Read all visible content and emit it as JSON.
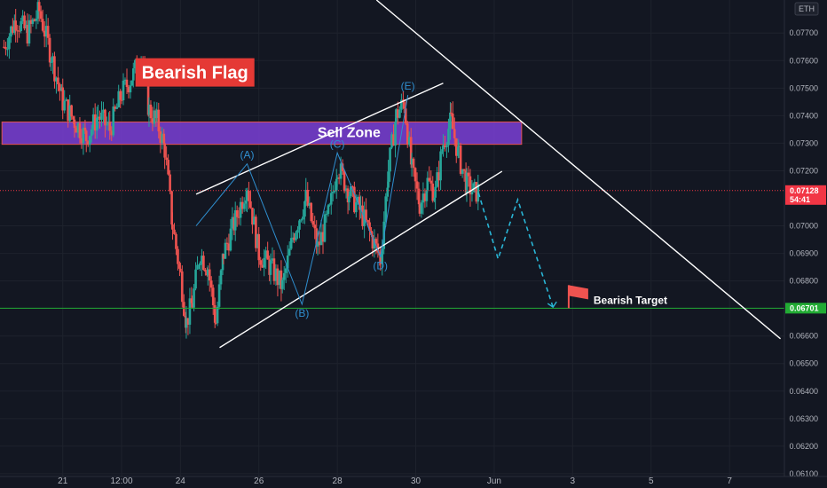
{
  "chart_data": {
    "type": "candlestick",
    "symbol_currency": "ETH",
    "title": "",
    "xlabel": "",
    "ylabel": "",
    "ylim": [
      0.0609,
      0.0782
    ],
    "y_ticks": [
      "0.07700",
      "0.07600",
      "0.07500",
      "0.07400",
      "0.07300",
      "0.07200",
      "0.07000",
      "0.06900",
      "0.06800",
      "0.06600",
      "0.06500",
      "0.06400",
      "0.06300",
      "0.06200",
      "0.06100"
    ],
    "y_tick_values": [
      0.077,
      0.076,
      0.075,
      0.074,
      0.073,
      0.072,
      0.07,
      0.069,
      0.068,
      0.066,
      0.065,
      0.064,
      0.063,
      0.062,
      0.061
    ],
    "x_ticks": [
      "21",
      "12:00",
      "24",
      "26",
      "28",
      "30",
      "Jun",
      "3",
      "5",
      "7"
    ],
    "x_tick_days": [
      21,
      22.5,
      24,
      26,
      28,
      30,
      32,
      34,
      36,
      38
    ],
    "x_range_days": [
      19.4,
      39.4
    ],
    "current_price": {
      "label": "0.07128",
      "countdown": "54:41",
      "value": 0.07128,
      "color": "#f23645"
    },
    "target_price": {
      "label": "0.06701",
      "value": 0.06701,
      "color": "#22ab34"
    },
    "colors": {
      "up": "#26a69a",
      "down": "#ef5350",
      "background": "#131722",
      "grid": "#1e222d",
      "wave": "#2f8fd0",
      "sell_zone": "#7b3fd6",
      "title_box": "#e53935"
    },
    "candle_path": [
      [
        19.5,
        0.0765
      ],
      [
        19.8,
        0.0775
      ],
      [
        20.1,
        0.077
      ],
      [
        20.4,
        0.0778
      ],
      [
        20.7,
        0.0762
      ],
      [
        21.0,
        0.0745
      ],
      [
        21.3,
        0.0738
      ],
      [
        21.6,
        0.0732
      ],
      [
        21.9,
        0.074
      ],
      [
        22.2,
        0.0735
      ],
      [
        22.5,
        0.0748
      ],
      [
        22.8,
        0.0755
      ],
      [
        23.0,
        0.0762
      ],
      [
        23.2,
        0.0742
      ],
      [
        23.4,
        0.0738
      ],
      [
        23.6,
        0.0728
      ],
      [
        23.8,
        0.07
      ],
      [
        24.0,
        0.0682
      ],
      [
        24.15,
        0.0665
      ],
      [
        24.3,
        0.0672
      ],
      [
        24.5,
        0.069
      ],
      [
        24.7,
        0.0685
      ],
      [
        24.9,
        0.0665
      ],
      [
        25.1,
        0.069
      ],
      [
        25.4,
        0.0702
      ],
      [
        25.7,
        0.0715
      ],
      [
        26.0,
        0.069
      ],
      [
        26.3,
        0.0685
      ],
      [
        26.6,
        0.0678
      ],
      [
        26.9,
        0.0698
      ],
      [
        27.2,
        0.071
      ],
      [
        27.5,
        0.0692
      ],
      [
        27.8,
        0.0705
      ],
      [
        28.0,
        0.0722
      ],
      [
        28.3,
        0.0712
      ],
      [
        28.6,
        0.0705
      ],
      [
        28.9,
        0.0695
      ],
      [
        29.1,
        0.0688
      ],
      [
        29.3,
        0.072
      ],
      [
        29.5,
        0.074
      ],
      [
        29.7,
        0.0745
      ],
      [
        29.9,
        0.072
      ],
      [
        30.1,
        0.0708
      ],
      [
        30.3,
        0.0716
      ],
      [
        30.5,
        0.0712
      ],
      [
        30.7,
        0.073
      ],
      [
        30.9,
        0.0738
      ],
      [
        31.1,
        0.0725
      ],
      [
        31.3,
        0.0715
      ],
      [
        31.5,
        0.0712
      ],
      [
        31.6,
        0.07128
      ]
    ],
    "wave_points": [
      {
        "label": "(A)",
        "x": 25.7,
        "y": 0.07225
      },
      {
        "label": "(B)",
        "x": 27.1,
        "y": 0.06715
      },
      {
        "label": "(C)",
        "x": 28.0,
        "y": 0.07265
      },
      {
        "label": "(D)",
        "x": 29.1,
        "y": 0.06888
      },
      {
        "label": "(E)",
        "x": 29.8,
        "y": 0.07475
      }
    ],
    "wave_line": [
      [
        24.4,
        0.07
      ],
      [
        25.7,
        0.07225
      ],
      [
        27.1,
        0.06715
      ],
      [
        28.0,
        0.07265
      ],
      [
        29.1,
        0.06888
      ],
      [
        29.8,
        0.07475
      ]
    ],
    "flag_channel": {
      "upper": [
        [
          24.4,
          0.07115
        ],
        [
          30.7,
          0.07518
        ]
      ],
      "lower": [
        [
          25.0,
          0.06558
        ],
        [
          32.2,
          0.07198
        ]
      ]
    },
    "trendline": [
      [
        29.0,
        0.0782
      ],
      [
        39.3,
        0.0659
      ]
    ],
    "projection": [
      [
        31.6,
        0.0712
      ],
      [
        32.1,
        0.0688
      ],
      [
        32.6,
        0.07095
      ],
      [
        33.5,
        0.06705
      ]
    ],
    "sell_zone": {
      "label": "Sell Zone",
      "y_low": 0.07296,
      "y_high": 0.07377,
      "x_start": 19.45,
      "x_end": 32.7
    },
    "annotations": {
      "title": "Bearish Flag",
      "target": "Bearish Target"
    }
  }
}
